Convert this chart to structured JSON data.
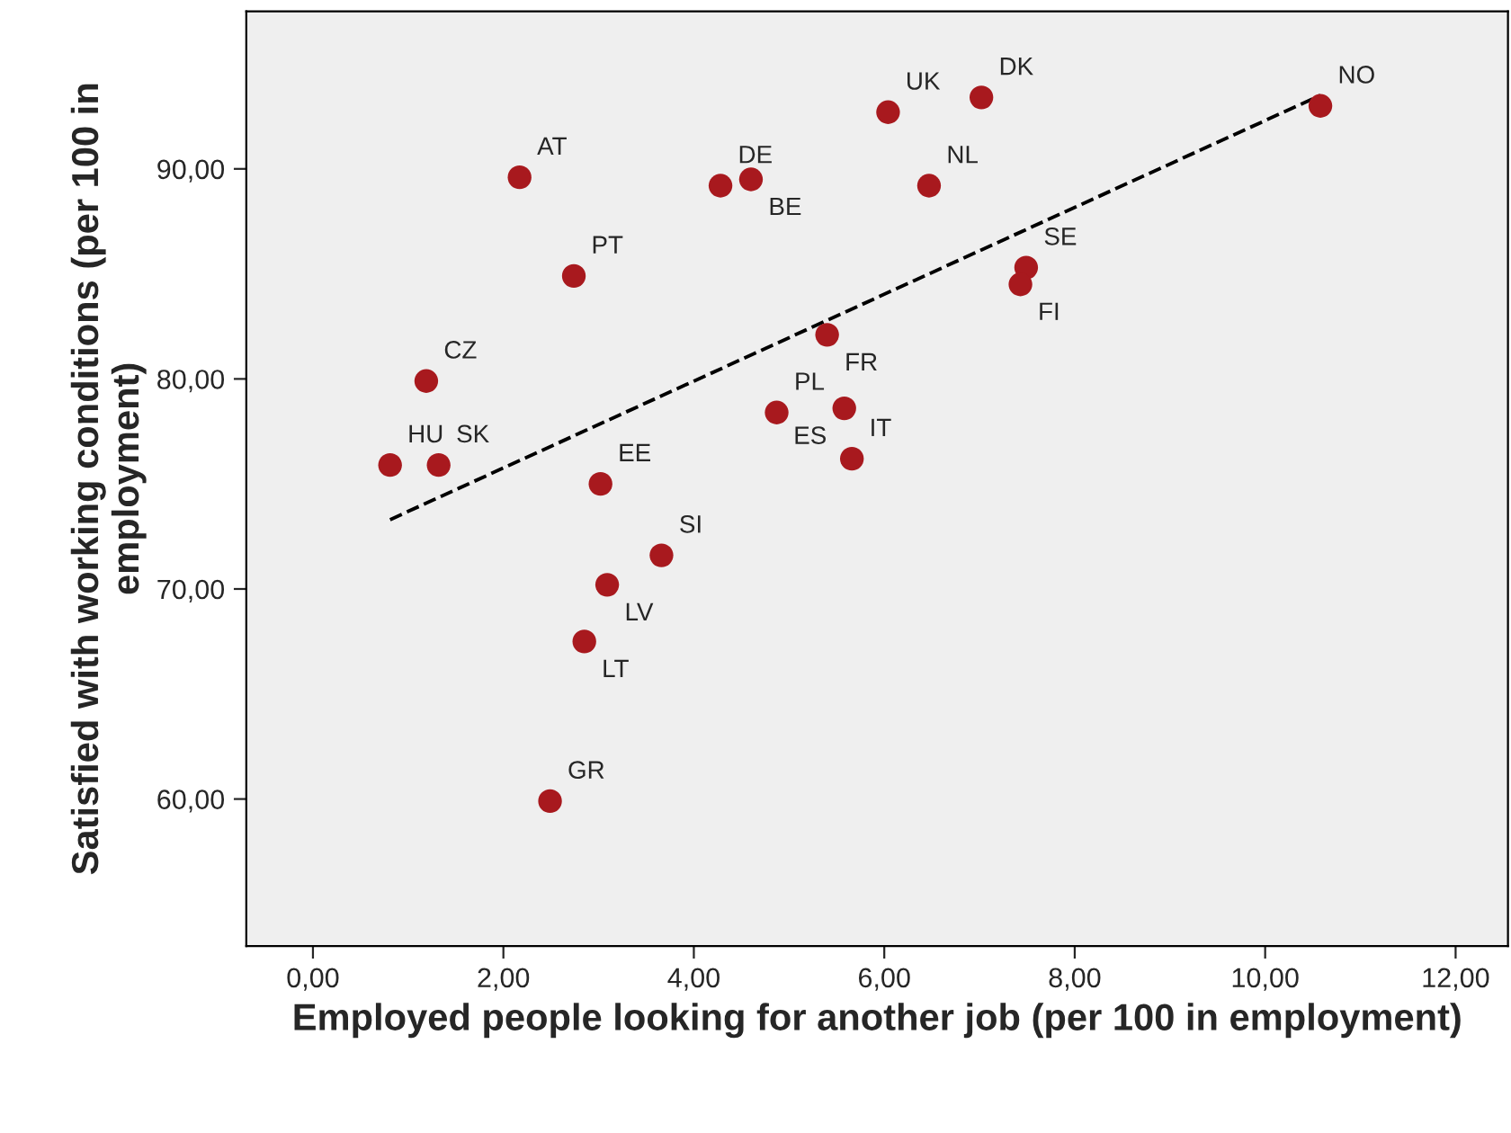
{
  "chart_data": {
    "type": "scatter",
    "xlabel": "Employed people looking for another job (per 100 in employment)",
    "ylabel": "Satisfied with working conditions (per 100 in employment)",
    "xlim": [
      -0.7,
      12.55
    ],
    "ylim": [
      53,
      97.5
    ],
    "xticks": [
      {
        "value": 0,
        "label": "0,00"
      },
      {
        "value": 2,
        "label": "2,00"
      },
      {
        "value": 4,
        "label": "4,00"
      },
      {
        "value": 6,
        "label": "6,00"
      },
      {
        "value": 8,
        "label": "8,00"
      },
      {
        "value": 10,
        "label": "10,00"
      },
      {
        "value": 12,
        "label": "12,00"
      }
    ],
    "yticks": [
      {
        "value": 60,
        "label": "60,00"
      },
      {
        "value": 70,
        "label": "70,00"
      },
      {
        "value": 80,
        "label": "80,00"
      },
      {
        "value": 90,
        "label": "90,00"
      }
    ],
    "grid": false,
    "legend": false,
    "marker": "circle",
    "series": [
      {
        "color": "#a8191e",
        "x": [
          0.81,
          1.32,
          1.19,
          2.17,
          2.74,
          4.28,
          4.6,
          6.04,
          7.02,
          10.58,
          6.47,
          7.49,
          7.43,
          5.4,
          4.87,
          5.58,
          5.66,
          3.02,
          3.66,
          3.09,
          2.85,
          2.49
        ],
        "values": [
          75.9,
          75.9,
          79.9,
          89.6,
          84.9,
          89.2,
          89.5,
          92.7,
          93.4,
          93.0,
          89.2,
          85.3,
          84.5,
          82.1,
          78.4,
          78.6,
          76.2,
          75.0,
          71.6,
          70.2,
          67.5,
          59.9
        ]
      },
      {
        "type": "line",
        "color": "#000000",
        "line_style": "dashed",
        "marker": "none",
        "x": [
          0.81,
          10.58
        ],
        "values": [
          73.3,
          93.5
        ]
      }
    ],
    "annotations": [
      {
        "text": "HU",
        "x": 0.81,
        "y": 75.9
      },
      {
        "text": "SK",
        "x": 1.32,
        "y": 75.9
      },
      {
        "text": "CZ",
        "x": 1.19,
        "y": 79.9
      },
      {
        "text": "AT",
        "x": 2.17,
        "y": 89.6
      },
      {
        "text": "PT",
        "x": 2.74,
        "y": 84.9
      },
      {
        "text": "DE",
        "x": 4.28,
        "y": 89.2
      },
      {
        "text": "BE",
        "x": 4.6,
        "y": 89.5
      },
      {
        "text": "UK",
        "x": 6.04,
        "y": 92.7
      },
      {
        "text": "DK",
        "x": 7.02,
        "y": 93.4
      },
      {
        "text": "NO",
        "x": 10.58,
        "y": 93.0
      },
      {
        "text": "NL",
        "x": 6.47,
        "y": 89.2
      },
      {
        "text": "SE",
        "x": 7.49,
        "y": 85.3
      },
      {
        "text": "FI",
        "x": 7.43,
        "y": 84.5
      },
      {
        "text": "FR",
        "x": 5.4,
        "y": 82.1
      },
      {
        "text": "PL",
        "x": 4.87,
        "y": 78.4
      },
      {
        "text": "ES",
        "x": 5.58,
        "y": 78.6
      },
      {
        "text": "IT",
        "x": 5.66,
        "y": 76.2
      },
      {
        "text": "EE",
        "x": 3.02,
        "y": 75.0
      },
      {
        "text": "SI",
        "x": 3.66,
        "y": 71.6
      },
      {
        "text": "LV",
        "x": 3.09,
        "y": 70.2
      },
      {
        "text": "LT",
        "x": 2.85,
        "y": 67.5
      },
      {
        "text": "GR",
        "x": 2.49,
        "y": 59.9
      }
    ]
  }
}
